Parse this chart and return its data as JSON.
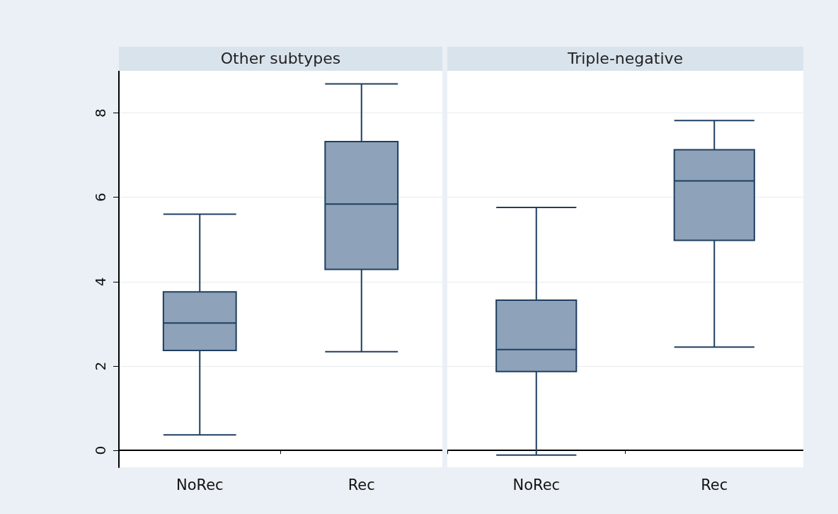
{
  "chart_data": [
    {
      "type": "box",
      "title": "Other subtypes",
      "categories": [
        "NoRec",
        "Rec"
      ],
      "ylim": [
        -0.4,
        9
      ],
      "yticks": [
        0,
        2,
        4,
        6,
        8
      ],
      "grid": "y",
      "series": [
        {
          "color": "#8ea2b9",
          "boxes": [
            {
              "low": 0.37,
              "q1": 2.37,
              "median": 3.02,
              "q3": 3.76,
              "high": 5.6
            },
            {
              "low": 2.34,
              "q1": 4.29,
              "median": 5.84,
              "q3": 7.32,
              "high": 8.69
            }
          ]
        }
      ]
    },
    {
      "type": "box",
      "title": "Triple-negative",
      "categories": [
        "NoRec",
        "Rec"
      ],
      "ylim": [
        -0.4,
        9
      ],
      "yticks": [
        0,
        2,
        4,
        6,
        8
      ],
      "grid": "y",
      "tick_labels": "x",
      "series": [
        {
          "color": "#8ea2b9",
          "boxes": [
            {
              "low": -0.11,
              "q1": 1.87,
              "median": 2.39,
              "q3": 3.56,
              "high": 5.76
            },
            {
              "low": 2.45,
              "q1": 4.98,
              "median": 6.39,
              "q3": 7.13,
              "high": 7.82
            }
          ]
        }
      ]
    }
  ]
}
